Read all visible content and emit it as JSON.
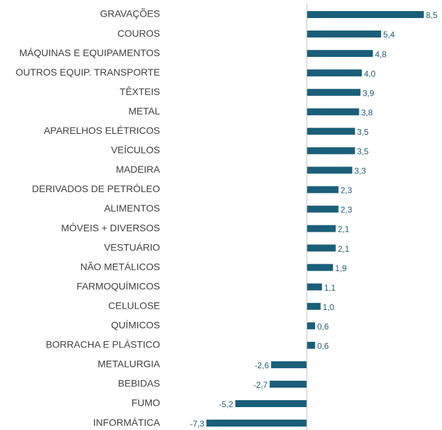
{
  "chart_data": {
    "type": "hbar",
    "categories": [
      "GRAVAÇÕES",
      "COUROS",
      "MÁQUINAS E EQUIPAMENTOS",
      "OUTROS EQUIP. TRANSPORTE",
      "TÊXTEIS",
      "METAL",
      "APARELHOS ELÉTRICOS",
      "VEÍCULOS",
      "MADEIRA",
      "DERIVADOS DE PETRÓLEO",
      "ALIMENTOS",
      "MÓVEIS + DIVERSOS",
      "VESTUÁRIO",
      "NÃO METÁLICOS",
      "FARMOQUÍMICOS",
      "CELULOSE",
      "QUÍMICOS",
      "BORRACHA E PLÁSTICO",
      "METALURGIA",
      "BEBIDAS",
      "FUMO",
      "INFORMÁTICA"
    ],
    "values": [
      8.5,
      5.4,
      4.8,
      4.0,
      3.9,
      3.8,
      3.5,
      3.5,
      3.3,
      2.3,
      2.3,
      2.1,
      2.1,
      1.9,
      1.1,
      1.0,
      0.6,
      0.6,
      -2.6,
      -2.7,
      -5.2,
      -7.3
    ],
    "value_labels": [
      "8,5",
      "5,4",
      "4,8",
      "4,0",
      "3,9",
      "3,8",
      "3,5",
      "3,5",
      "3,3",
      "2,3",
      "2,3",
      "2,1",
      "2,1",
      "1,9",
      "1,1",
      "1,0",
      "0,6",
      "0,6",
      "-2,6",
      "-2,7",
      "-5,2",
      "-7,3"
    ],
    "color": "#1a5f7a",
    "xlim": [
      -8,
      9.5
    ]
  }
}
